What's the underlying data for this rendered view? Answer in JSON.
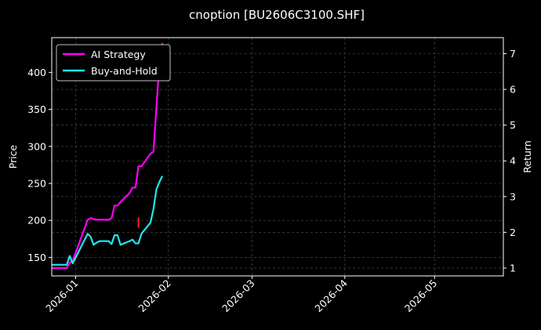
{
  "chart_data": {
    "type": "line",
    "title": "cnoption [BU2606C3100.SHF]",
    "ylabel_left": "Price",
    "ylabel_right": "Return",
    "x_ticks": [
      "2026-01",
      "2026-02",
      "2026-03",
      "2026-04",
      "2026-05"
    ],
    "y_left_ticks": [
      "150",
      "200",
      "250",
      "300",
      "350",
      "400"
    ],
    "y_right_ticks": [
      "1",
      "2",
      "3",
      "4",
      "5",
      "6",
      "7"
    ],
    "xlim": [
      "2025-12-24",
      "2026-05-24"
    ],
    "ylim_left": [
      125,
      447
    ],
    "ylim_right": [
      0.78,
      7.45
    ],
    "grid": true,
    "legend_position": "top-left",
    "series": [
      {
        "name": "AI Strategy",
        "color": "#ff00ff",
        "axis": "right",
        "x": [
          "2025-12-24",
          "2025-12-25",
          "2025-12-26",
          "2025-12-29",
          "2025-12-30",
          "2025-12-31",
          "2026-01-05",
          "2026-01-06",
          "2026-01-07",
          "2026-01-08",
          "2026-01-09",
          "2026-01-12",
          "2026-01-13",
          "2026-01-14",
          "2026-01-15",
          "2026-01-16",
          "2026-01-19",
          "2026-01-20",
          "2026-01-21",
          "2026-01-22",
          "2026-01-23",
          "2026-01-26",
          "2026-01-27",
          "2026-01-28",
          "2026-01-29",
          "2026-01-30"
        ],
        "values": [
          1.0,
          1.0,
          1.0,
          1.0,
          1.15,
          1.2,
          2.35,
          2.4,
          2.37,
          2.35,
          2.35,
          2.35,
          2.4,
          2.75,
          2.75,
          2.85,
          3.1,
          3.25,
          3.25,
          3.85,
          3.85,
          4.2,
          4.25,
          5.5,
          6.7,
          7.3
        ]
      },
      {
        "name": "Buy-and-Hold",
        "color": "#22e5ee",
        "axis": "left",
        "x": [
          "2025-12-24",
          "2025-12-25",
          "2025-12-26",
          "2025-12-29",
          "2025-12-30",
          "2025-12-31",
          "2026-01-05",
          "2026-01-06",
          "2026-01-07",
          "2026-01-08",
          "2026-01-09",
          "2026-01-12",
          "2026-01-13",
          "2026-01-14",
          "2026-01-15",
          "2026-01-16",
          "2026-01-19",
          "2026-01-20",
          "2026-01-21",
          "2026-01-22",
          "2026-01-23",
          "2026-01-26",
          "2026-01-27",
          "2026-01-28",
          "2026-01-29",
          "2026-01-30"
        ],
        "values": [
          140,
          140,
          140,
          140,
          152,
          142,
          182,
          178,
          167,
          170,
          172,
          172,
          168,
          180,
          180,
          167,
          172,
          174,
          169,
          169,
          182,
          197,
          215,
          242,
          252,
          260
        ]
      }
    ],
    "markers": [
      {
        "x": "2026-01-22",
        "y_low": 190,
        "y_high": 204,
        "color": "#ff2020"
      }
    ]
  }
}
